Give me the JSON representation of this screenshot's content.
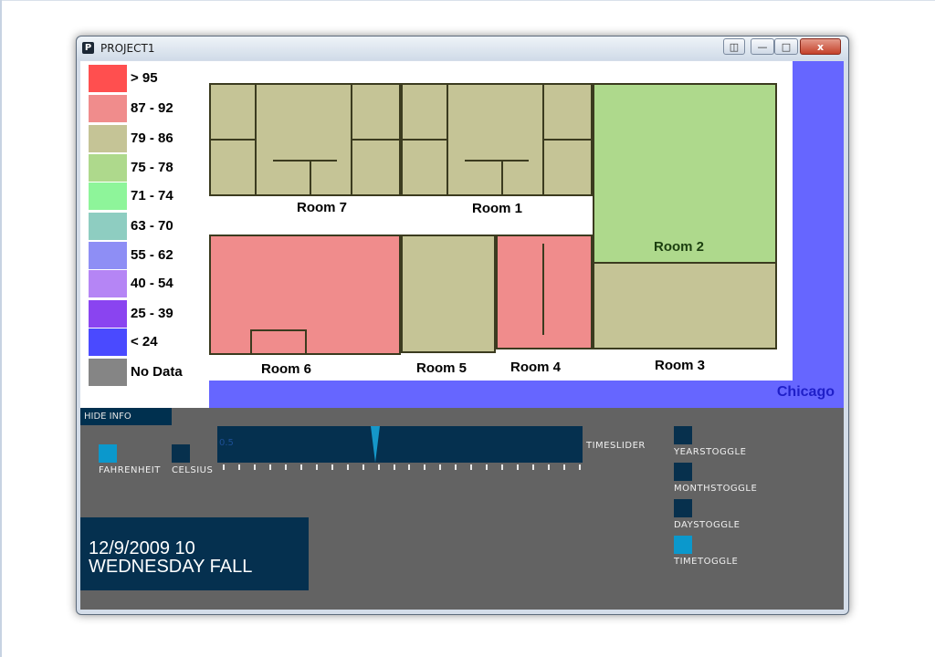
{
  "window": {
    "title": "PROJECT1",
    "app_icon": "P",
    "close_label": "x"
  },
  "legend": [
    {
      "label": "> 95",
      "color": "#ff4f4f"
    },
    {
      "label": "87 - 92",
      "color": "#f08c8c"
    },
    {
      "label": "79 - 86",
      "color": "#c5c496"
    },
    {
      "label": "75 - 78",
      "color": "#aed98c"
    },
    {
      "label": "71 - 74",
      "color": "#8ef59a"
    },
    {
      "label": "63 - 70",
      "color": "#8ecdc1"
    },
    {
      "label": "55 - 62",
      "color": "#8e8ef5"
    },
    {
      "label": "40 - 54",
      "color": "#b585f5"
    },
    {
      "label": "25 - 39",
      "color": "#8a44f0"
    },
    {
      "label": "< 24",
      "color": "#4a4aff"
    },
    {
      "label": "No Data",
      "color": "#858585"
    }
  ],
  "map": {
    "city": "Chicago",
    "rooms": {
      "room7": {
        "label": "Room 7",
        "color": "#c5c496"
      },
      "room1": {
        "label": "Room 1",
        "color": "#c5c496"
      },
      "room2": {
        "label": "Room 2",
        "color": "#aed98c"
      },
      "room3": {
        "label": "Room 3",
        "color": "#c5c496"
      },
      "room4": {
        "label": "Room 4",
        "color": "#f08c8c"
      },
      "room5": {
        "label": "Room 5",
        "color": "#c5c496"
      },
      "room6": {
        "label": "Room 6",
        "color": "#f08c8c"
      }
    }
  },
  "controls": {
    "hide_info": "HIDE INFO",
    "fahrenheit": {
      "label": "FAHRENHEIT",
      "active": true
    },
    "celsius": {
      "label": "CELSIUS",
      "active": false
    },
    "timeslider": {
      "label": "TIMESLIDER",
      "position_text": "0.5",
      "tick_count": 24
    },
    "toggles": [
      {
        "label": "YEARSTOGGLE",
        "active": false
      },
      {
        "label": "MONTHSTOGGLE",
        "active": false
      },
      {
        "label": "DAYSTOGGLE",
        "active": false
      },
      {
        "label": "TIMETOGGLE",
        "active": true
      }
    ]
  },
  "datetime": {
    "line1": "12/9/2009 10",
    "line2": "WEDNESDAY FALL"
  }
}
